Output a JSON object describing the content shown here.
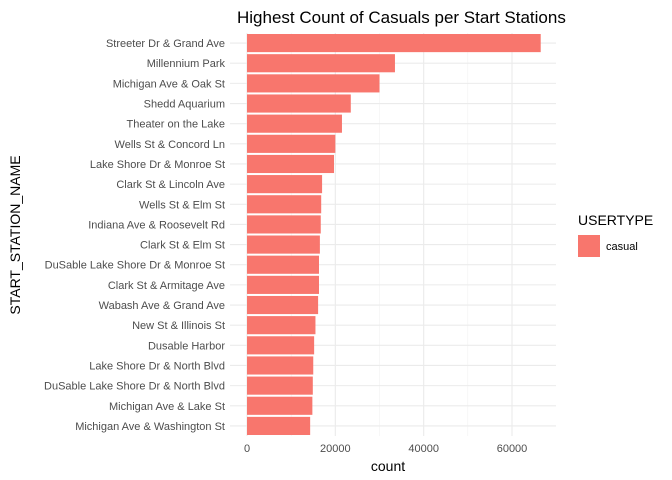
{
  "chart_data": {
    "type": "bar",
    "orientation": "horizontal",
    "title": "Highest Count of Casuals per Start Stations",
    "xlabel": "count",
    "ylabel": "START_STATION_NAME",
    "xlim": [
      0,
      70000
    ],
    "xticks": [
      0,
      20000,
      40000,
      60000
    ],
    "grid": true,
    "legend": {
      "title": "USERTYPE",
      "position": "right",
      "entries": [
        "casual"
      ]
    },
    "bar_color": "#F8766D",
    "categories": [
      "Streeter Dr & Grand Ave",
      "Millennium Park",
      "Michigan Ave & Oak St",
      "Shedd Aquarium",
      "Theater on the Lake",
      "Wells St & Concord Ln",
      "Lake Shore Dr & Monroe St",
      "Clark St & Lincoln Ave",
      "Wells St & Elm St",
      "Indiana Ave & Roosevelt Rd",
      "Clark St & Elm St",
      "DuSable Lake Shore Dr & Monroe St",
      "Clark St & Armitage Ave",
      "Wabash Ave & Grand Ave",
      "New St & Illinois St",
      "Dusable Harbor",
      "Lake Shore Dr & North Blvd",
      "DuSable Lake Shore Dr & North Blvd",
      "Michigan Ave & Lake St",
      "Michigan Ave & Washington St"
    ],
    "series": [
      {
        "name": "casual",
        "values": [
          66500,
          33500,
          30000,
          23500,
          21500,
          20000,
          19700,
          17000,
          16800,
          16700,
          16500,
          16300,
          16300,
          16100,
          15500,
          15200,
          15000,
          14900,
          14800,
          14300
        ]
      }
    ]
  }
}
